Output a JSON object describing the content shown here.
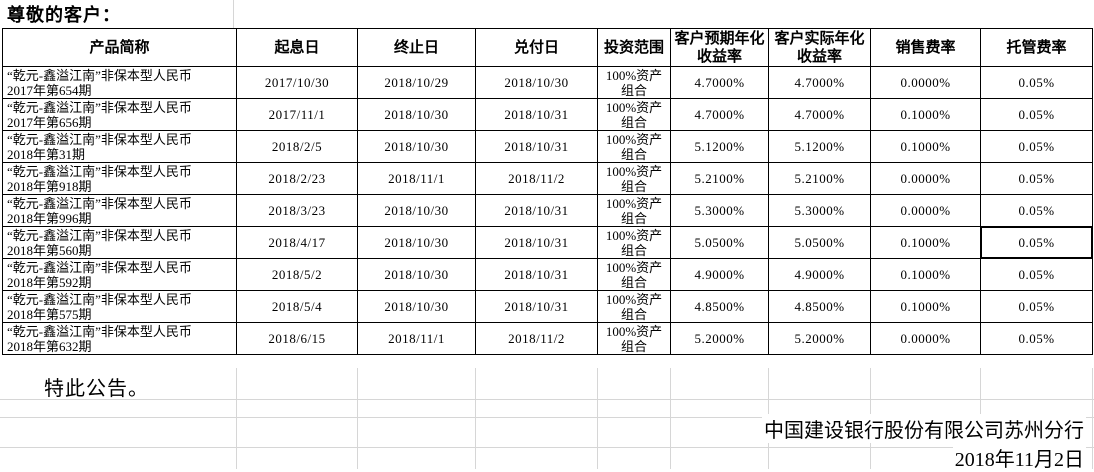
{
  "page": {
    "greeting": "尊敬的客户：",
    "closing": "特此公告。",
    "issuer": "中国建设银行股份有限公司苏州分行",
    "issue_date": "2018年11月2日"
  },
  "colors": {
    "text": "#000000",
    "table_border": "#000000",
    "spreadsheet_gridline": "#d6d6d6",
    "background": "#ffffff"
  },
  "table": {
    "headers": [
      "产品简称",
      "起息日",
      "终止日",
      "兑付日",
      "投资范围",
      "客户预期年化收益率",
      "客户实际年化收益率",
      "销售费率",
      "托管费率"
    ],
    "rows": [
      {
        "product": [
          "“乾元-鑫溢江南”非保本型人民币",
          "2017年第654期"
        ],
        "value_date": "2017/10/30",
        "end_date": "2018/10/29",
        "payment_date": "2018/10/30",
        "investment_scope": [
          "100%资产",
          "组合"
        ],
        "expected_yield": "4.7000%",
        "actual_yield": "4.7000%",
        "sales_fee": "0.0000%",
        "custody_fee": "0.05%"
      },
      {
        "product": [
          "“乾元-鑫溢江南”非保本型人民币",
          "2017年第656期"
        ],
        "value_date": "2017/11/1",
        "end_date": "2018/10/30",
        "payment_date": "2018/10/31",
        "investment_scope": [
          "100%资产",
          "组合"
        ],
        "expected_yield": "4.7000%",
        "actual_yield": "4.7000%",
        "sales_fee": "0.1000%",
        "custody_fee": "0.05%"
      },
      {
        "product": [
          "“乾元-鑫溢江南”非保本型人民币",
          "2018年第31期"
        ],
        "value_date": "2018/2/5",
        "end_date": "2018/10/30",
        "payment_date": "2018/10/31",
        "investment_scope": [
          "100%资产",
          "组合"
        ],
        "expected_yield": "5.1200%",
        "actual_yield": "5.1200%",
        "sales_fee": "0.1000%",
        "custody_fee": "0.05%"
      },
      {
        "product": [
          "“乾元-鑫溢江南”非保本型人民币",
          "2018年第918期"
        ],
        "value_date": "2018/2/23",
        "end_date": "2018/11/1",
        "payment_date": "2018/11/2",
        "investment_scope": [
          "100%资产",
          "组合"
        ],
        "expected_yield": "5.2100%",
        "actual_yield": "5.2100%",
        "sales_fee": "0.0000%",
        "custody_fee": "0.05%"
      },
      {
        "product": [
          "“乾元-鑫溢江南”非保本型人民币",
          "2018年第996期"
        ],
        "value_date": "2018/3/23",
        "end_date": "2018/10/30",
        "payment_date": "2018/10/31",
        "investment_scope": [
          "100%资产",
          "组合"
        ],
        "expected_yield": "5.3000%",
        "actual_yield": "5.3000%",
        "sales_fee": "0.0000%",
        "custody_fee": "0.05%"
      },
      {
        "product": [
          "“乾元-鑫溢江南”非保本型人民币",
          "2018年第560期"
        ],
        "value_date": "2018/4/17",
        "end_date": "2018/10/30",
        "payment_date": "2018/10/31",
        "investment_scope": [
          "100%资产",
          "组合"
        ],
        "expected_yield": "5.0500%",
        "actual_yield": "5.0500%",
        "sales_fee": "0.1000%",
        "custody_fee": "0.05%"
      },
      {
        "product": [
          "“乾元-鑫溢江南”非保本型人民币",
          "2018年第592期"
        ],
        "value_date": "2018/5/2",
        "end_date": "2018/10/30",
        "payment_date": "2018/10/31",
        "investment_scope": [
          "100%资产",
          "组合"
        ],
        "expected_yield": "4.9000%",
        "actual_yield": "4.9000%",
        "sales_fee": "0.1000%",
        "custody_fee": "0.05%"
      },
      {
        "product": [
          "“乾元-鑫溢江南”非保本型人民币",
          "2018年第575期"
        ],
        "value_date": "2018/5/4",
        "end_date": "2018/10/30",
        "payment_date": "2018/10/31",
        "investment_scope": [
          "100%资产",
          "组合"
        ],
        "expected_yield": "4.8500%",
        "actual_yield": "4.8500%",
        "sales_fee": "0.1000%",
        "custody_fee": "0.05%"
      },
      {
        "product": [
          "“乾元-鑫溢江南”非保本型人民币",
          "2018年第632期"
        ],
        "value_date": "2018/6/15",
        "end_date": "2018/11/1",
        "payment_date": "2018/11/2",
        "investment_scope": [
          "100%资产",
          "组合"
        ],
        "expected_yield": "5.2000%",
        "actual_yield": "5.2000%",
        "sales_fee": "0.0000%",
        "custody_fee": "0.05%"
      }
    ]
  }
}
